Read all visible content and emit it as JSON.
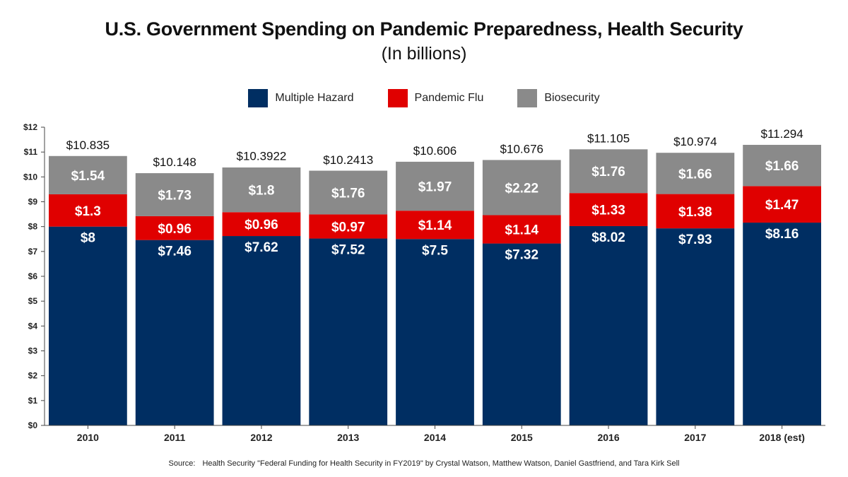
{
  "title": "U.S. Government Spending on Pandemic Preparedness, Health Security",
  "subtitle": "(In billions)",
  "source": {
    "label": "Source:",
    "text": "Health Security \"Federal Funding for Health Security in FY2019\" by Crystal Watson, Matthew Watson, Daniel Gastfriend, and Tara Kirk Sell"
  },
  "colors": {
    "Multiple Hazard": "#002e62",
    "Pandemic Flu": "#e00000",
    "Biosecurity": "#8a8a8a"
  },
  "legend": [
    "Multiple Hazard",
    "Pandemic Flu",
    "Biosecurity"
  ],
  "chart_data": {
    "type": "bar",
    "stacked": true,
    "title": "U.S. Government Spending on Pandemic Preparedness, Health Security",
    "subtitle": "(In billions)",
    "categories": [
      "2010",
      "2011",
      "2012",
      "2013",
      "2014",
      "2015",
      "2016",
      "2017",
      "2018 (est)"
    ],
    "series": [
      {
        "name": "Multiple Hazard",
        "values": [
          8,
          7.46,
          7.62,
          7.52,
          7.5,
          7.32,
          8.02,
          7.93,
          8.16
        ],
        "labels": [
          "$8",
          "$7.46",
          "$7.62",
          "$7.52",
          "$7.5",
          "$7.32",
          "$8.02",
          "$7.93",
          "$8.16"
        ]
      },
      {
        "name": "Pandemic Flu",
        "values": [
          1.3,
          0.96,
          0.96,
          0.97,
          1.14,
          1.14,
          1.33,
          1.38,
          1.47
        ],
        "labels": [
          "$1.3",
          "$0.96",
          "$0.96",
          "$0.97",
          "$1.14",
          "$1.14",
          "$1.33",
          "$1.38",
          "$1.47"
        ]
      },
      {
        "name": "Biosecurity",
        "values": [
          1.54,
          1.73,
          1.8,
          1.76,
          1.97,
          2.22,
          1.76,
          1.66,
          1.66
        ],
        "labels": [
          "$1.54",
          "$1.73",
          "$1.8",
          "$1.76",
          "$1.97",
          "$2.22",
          "$1.76",
          "$1.66",
          "$1.66"
        ]
      }
    ],
    "totals": [
      10.835,
      10.148,
      10.3922,
      10.2413,
      10.606,
      10.676,
      11.105,
      10.974,
      11.294
    ],
    "total_labels": [
      "$10.835",
      "$10.148",
      "$10.3922",
      "$10.2413",
      "$10.606",
      "$10.676",
      "$11.105",
      "$10.974",
      "$11.294"
    ],
    "y_ticks": [
      "$0",
      "$1",
      "$2",
      "$3",
      "$4",
      "$5",
      "$6",
      "$7",
      "$8",
      "$9",
      "$10",
      "$11",
      "$12"
    ],
    "ylim": [
      0,
      12
    ],
    "grid": false,
    "legend_position": "top-center"
  }
}
